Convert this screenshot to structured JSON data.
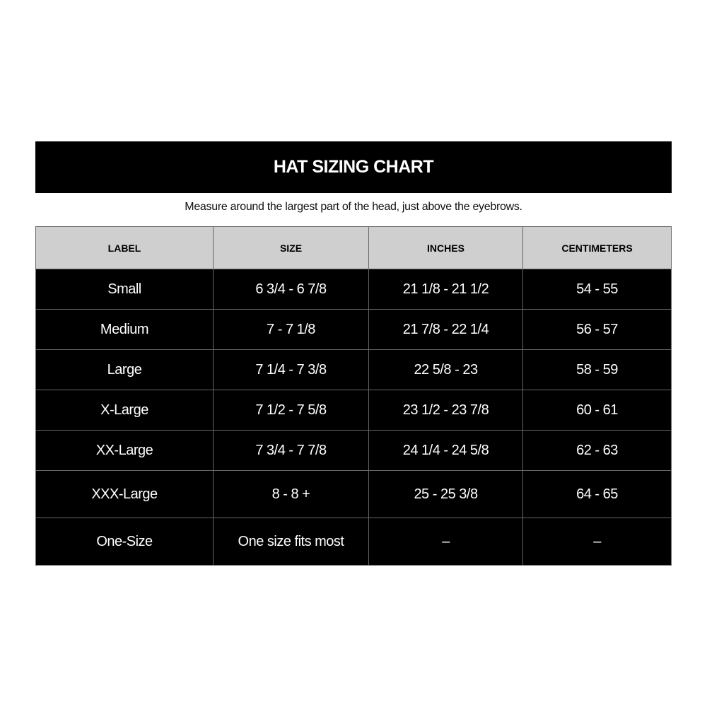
{
  "title": "HAT SIZING CHART",
  "subtitle": "Measure around the largest part of the head, just above the eyebrows.",
  "columns": [
    "LABEL",
    "SIZE",
    "INCHES",
    "CENTIMETERS"
  ],
  "rows": [
    [
      "Small",
      "6 3/4 - 6 7/8",
      "21 1/8 - 21 1/2",
      "54 - 55"
    ],
    [
      "Medium",
      "7 - 7 1/8",
      "21 7/8 - 22 1/4",
      "56 - 57"
    ],
    [
      "Large",
      "7 1/4 - 7 3/8",
      "22 5/8 - 23",
      "58 - 59"
    ],
    [
      "X-Large",
      "7 1/2 - 7 5/8",
      "23 1/2 - 23 7/8",
      "60 - 61"
    ],
    [
      "XX-Large",
      "7 3/4 - 7 7/8",
      "24 1/4 - 24 5/8",
      "62 - 63"
    ],
    [
      "XXX-Large",
      "8 - 8 +",
      "25 - 25 3/8",
      "64 - 65"
    ],
    [
      "One-Size",
      "One size fits most",
      "–",
      "–"
    ]
  ]
}
